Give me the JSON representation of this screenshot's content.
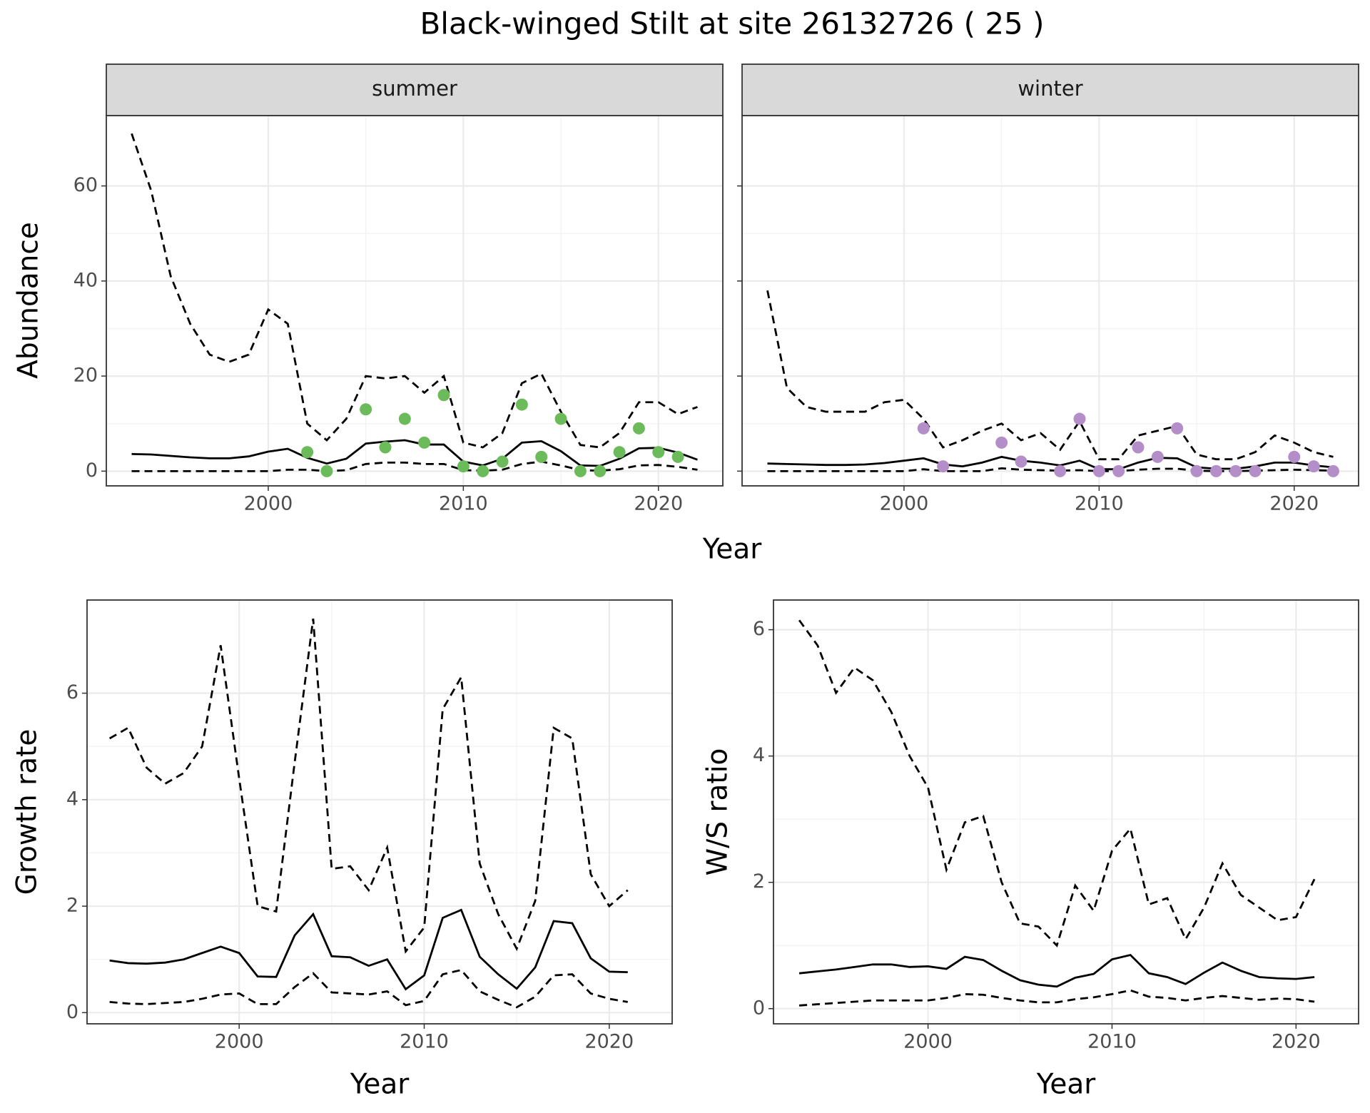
{
  "title": "Black-winged Stilt at site 26132726 ( 25 )",
  "facet_x_label": "Year",
  "chart_data": [
    {
      "type": "line",
      "strip": "summer",
      "y_label": "Abundance",
      "xlim": [
        1991.7,
        2023.3
      ],
      "xticks": [
        2000,
        2010,
        2020
      ],
      "ylim": [
        -3.1,
        74.8
      ],
      "yticks": [
        0,
        20,
        40,
        60
      ],
      "ytick_labels": true,
      "grid": true,
      "x": [
        1993,
        1994,
        1995,
        1996,
        1997,
        1998,
        1999,
        2000,
        2001,
        2002,
        2003,
        2004,
        2005,
        2006,
        2007,
        2008,
        2009,
        2010,
        2011,
        2012,
        2013,
        2014,
        2015,
        2016,
        2017,
        2018,
        2019,
        2020,
        2021,
        2022
      ],
      "series": [
        {
          "color": "#000000",
          "dash": true,
          "values": [
            71,
            59,
            41,
            31,
            24.5,
            23,
            24.5,
            34,
            31,
            10,
            6.5,
            11,
            20,
            19.5,
            20,
            16.5,
            20,
            6,
            5,
            8,
            18.5,
            20.5,
            12.5,
            5.5,
            5,
            8,
            14.5,
            14.5,
            12,
            13.5
          ]
        },
        {
          "color": "#000000",
          "dash": false,
          "values": [
            3.6,
            3.5,
            3.2,
            2.9,
            2.7,
            2.7,
            3.1,
            4.1,
            4.7,
            2.8,
            1.6,
            2.6,
            5.8,
            6.2,
            6.5,
            5.6,
            5.6,
            2.0,
            1.2,
            2.6,
            6.0,
            6.3,
            4.2,
            1.2,
            1.1,
            2.6,
            4.8,
            4.9,
            3.9,
            2.4
          ]
        },
        {
          "color": "#000000",
          "dash": true,
          "values": [
            0,
            0,
            0,
            0,
            0,
            0,
            0,
            0,
            0.3,
            0.3,
            0,
            0.2,
            1.5,
            1.8,
            1.8,
            1.5,
            1.5,
            0.2,
            0.1,
            0.3,
            1.5,
            2.0,
            1.2,
            0.2,
            0.1,
            0.4,
            1.2,
            1.3,
            0.9,
            0.3
          ]
        }
      ],
      "points": {
        "color": "#6cbb5a",
        "x": [
          2002,
          2003,
          2005,
          2006,
          2007,
          2008,
          2009,
          2010,
          2011,
          2012,
          2013,
          2014,
          2015,
          2016,
          2017,
          2018,
          2019,
          2020,
          2021
        ],
        "values": [
          4,
          0,
          13,
          5,
          11,
          6,
          16,
          1,
          0,
          2,
          14,
          3,
          11,
          0,
          0,
          4,
          9,
          4,
          3
        ]
      }
    },
    {
      "type": "line",
      "strip": "winter",
      "xlim": [
        1991.7,
        2023.3
      ],
      "xticks": [
        2000,
        2010,
        2020
      ],
      "ylim": [
        -3.1,
        74.8
      ],
      "yticks": [
        0,
        20,
        40,
        60
      ],
      "ytick_labels": false,
      "grid": true,
      "x": [
        1993,
        1994,
        1995,
        1996,
        1997,
        1998,
        1999,
        2000,
        2001,
        2002,
        2003,
        2004,
        2005,
        2006,
        2007,
        2008,
        2009,
        2010,
        2011,
        2012,
        2013,
        2014,
        2015,
        2016,
        2017,
        2018,
        2019,
        2020,
        2021,
        2022
      ],
      "series": [
        {
          "color": "#000000",
          "dash": true,
          "values": [
            38,
            17.5,
            13.5,
            12.5,
            12.5,
            12.5,
            14.5,
            15,
            11,
            5,
            6.5,
            8.5,
            10,
            6.5,
            8,
            4.5,
            10.5,
            2.5,
            2.5,
            7.5,
            8.5,
            9.5,
            3.5,
            2.5,
            2.5,
            4,
            7.5,
            6,
            4,
            3
          ]
        },
        {
          "color": "#000000",
          "dash": false,
          "values": [
            1.6,
            1.5,
            1.4,
            1.3,
            1.3,
            1.4,
            1.7,
            2.2,
            2.7,
            1.4,
            1.0,
            1.8,
            3.0,
            2.2,
            1.8,
            1.2,
            2.2,
            0.4,
            0.4,
            1.8,
            2.8,
            2.7,
            0.8,
            0.5,
            0.5,
            1.0,
            1.8,
            1.8,
            1.2,
            0.8
          ]
        },
        {
          "color": "#000000",
          "dash": true,
          "values": [
            0,
            0,
            0,
            0,
            0,
            0,
            0,
            0,
            0.4,
            0,
            0,
            0,
            0.6,
            0.3,
            0.2,
            0.1,
            0.2,
            0,
            0,
            0.3,
            0.5,
            0.5,
            0.1,
            0,
            0,
            0.1,
            0.2,
            0.3,
            0.2,
            0.1
          ]
        }
      ],
      "points": {
        "color": "#b48ec8",
        "x": [
          2001,
          2002,
          2005,
          2006,
          2008,
          2009,
          2010,
          2011,
          2012,
          2013,
          2014,
          2015,
          2016,
          2017,
          2018,
          2020,
          2021,
          2022
        ],
        "values": [
          9,
          1,
          6,
          2,
          0,
          11,
          0,
          0,
          5,
          3,
          9,
          0,
          0,
          0,
          0,
          3,
          1,
          0
        ]
      }
    },
    {
      "type": "line",
      "y_label": "Growth rate",
      "x_label": "Year",
      "xlim": [
        1991.78,
        2023.4
      ],
      "xticks": [
        2000,
        2010,
        2020
      ],
      "ylim": [
        -0.21,
        7.75
      ],
      "yticks": [
        0,
        2,
        4,
        6
      ],
      "ytick_labels": true,
      "grid": true,
      "x": [
        1993,
        1994,
        1995,
        1996,
        1997,
        1998,
        1999,
        2000,
        2001,
        2002,
        2003,
        2004,
        2005,
        2006,
        2007,
        2008,
        2009,
        2010,
        2011,
        2012,
        2013,
        2014,
        2015,
        2016,
        2017,
        2018,
        2019,
        2020,
        2021
      ],
      "series": [
        {
          "color": "#000000",
          "dash": true,
          "values": [
            5.15,
            5.35,
            4.6,
            4.3,
            4.5,
            5.0,
            6.9,
            4.4,
            2.0,
            1.9,
            4.7,
            7.4,
            2.7,
            2.75,
            2.3,
            3.1,
            1.15,
            1.6,
            5.7,
            6.3,
            2.8,
            1.85,
            1.2,
            2.1,
            5.35,
            5.15,
            2.6,
            2.0,
            2.3
          ]
        },
        {
          "color": "#000000",
          "dash": false,
          "values": [
            0.98,
            0.93,
            0.92,
            0.94,
            1.0,
            1.12,
            1.24,
            1.12,
            0.68,
            0.67,
            1.45,
            1.85,
            1.06,
            1.04,
            0.88,
            1.0,
            0.44,
            0.7,
            1.78,
            1.93,
            1.05,
            0.72,
            0.45,
            0.85,
            1.72,
            1.68,
            1.02,
            0.77,
            0.76
          ]
        },
        {
          "color": "#000000",
          "dash": true,
          "values": [
            0.2,
            0.17,
            0.16,
            0.18,
            0.2,
            0.26,
            0.34,
            0.36,
            0.16,
            0.16,
            0.48,
            0.74,
            0.38,
            0.36,
            0.34,
            0.4,
            0.14,
            0.22,
            0.72,
            0.8,
            0.4,
            0.24,
            0.1,
            0.3,
            0.7,
            0.72,
            0.36,
            0.26,
            0.2
          ]
        }
      ]
    },
    {
      "type": "line",
      "y_label": "W/S ratio",
      "x_label": "Year",
      "xlim": [
        1991.6,
        2023.4
      ],
      "xticks": [
        2000,
        2010,
        2020
      ],
      "ylim": [
        -0.24,
        6.47
      ],
      "yticks": [
        0,
        2,
        4,
        6
      ],
      "ytick_labels": true,
      "grid": true,
      "x": [
        1993,
        1994,
        1995,
        1996,
        1997,
        1998,
        1999,
        2000,
        2001,
        2002,
        2003,
        2004,
        2005,
        2006,
        2007,
        2008,
        2009,
        2010,
        2011,
        2012,
        2013,
        2014,
        2015,
        2016,
        2017,
        2018,
        2019,
        2020,
        2021
      ],
      "series": [
        {
          "color": "#000000",
          "dash": true,
          "values": [
            6.15,
            5.75,
            5.0,
            5.4,
            5.2,
            4.7,
            4.0,
            3.5,
            2.2,
            2.95,
            3.05,
            2.0,
            1.35,
            1.3,
            1.0,
            1.95,
            1.55,
            2.5,
            2.85,
            1.65,
            1.75,
            1.1,
            1.6,
            2.3,
            1.8,
            1.6,
            1.4,
            1.45,
            2.05
          ]
        },
        {
          "color": "#000000",
          "dash": false,
          "values": [
            0.56,
            0.59,
            0.62,
            0.66,
            0.7,
            0.7,
            0.66,
            0.67,
            0.63,
            0.82,
            0.77,
            0.6,
            0.45,
            0.38,
            0.35,
            0.49,
            0.55,
            0.78,
            0.85,
            0.56,
            0.5,
            0.39,
            0.57,
            0.73,
            0.6,
            0.5,
            0.48,
            0.47,
            0.5
          ]
        },
        {
          "color": "#000000",
          "dash": true,
          "values": [
            0.05,
            0.07,
            0.09,
            0.11,
            0.13,
            0.13,
            0.13,
            0.13,
            0.17,
            0.23,
            0.22,
            0.17,
            0.13,
            0.1,
            0.1,
            0.15,
            0.18,
            0.23,
            0.29,
            0.19,
            0.17,
            0.13,
            0.17,
            0.2,
            0.17,
            0.14,
            0.16,
            0.15,
            0.11
          ]
        }
      ]
    }
  ]
}
